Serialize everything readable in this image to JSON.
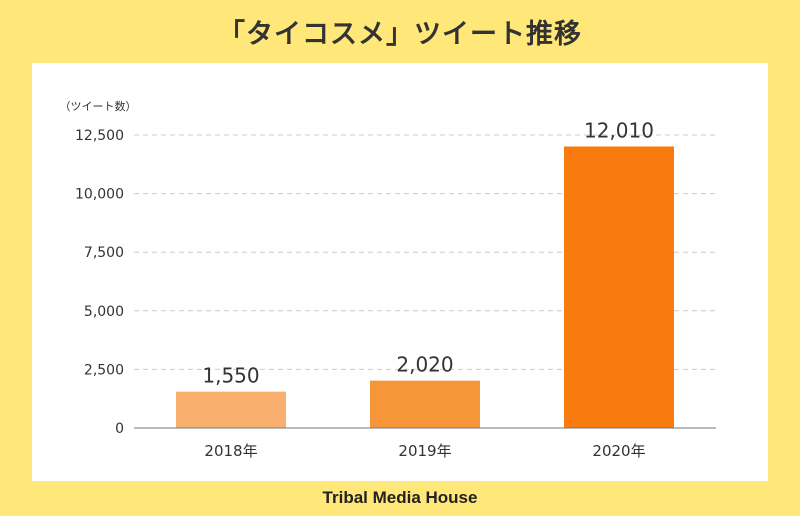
{
  "page": {
    "title": "「タイコスメ」ツイート推移",
    "footer_brand": "Tribal Media House"
  },
  "chart_data": {
    "type": "bar",
    "title": "「タイコスメ」ツイート推移",
    "ylabel": "（ツイート数）",
    "xlabel": "",
    "categories": [
      "2018年",
      "2019年",
      "2020年"
    ],
    "values": [
      1550,
      2020,
      12010
    ],
    "value_labels": [
      "1,550",
      "2,020",
      "12,010"
    ],
    "ylim": [
      0,
      12500
    ],
    "yticks": [
      0,
      2500,
      5000,
      7500,
      10000,
      12500
    ],
    "ytick_labels": [
      "0",
      "2,500",
      "5,000",
      "7,500",
      "10,000",
      "12,500"
    ],
    "grid": true,
    "bar_colors": [
      "#F9B06E",
      "#F79638",
      "#F97A0E"
    ]
  }
}
